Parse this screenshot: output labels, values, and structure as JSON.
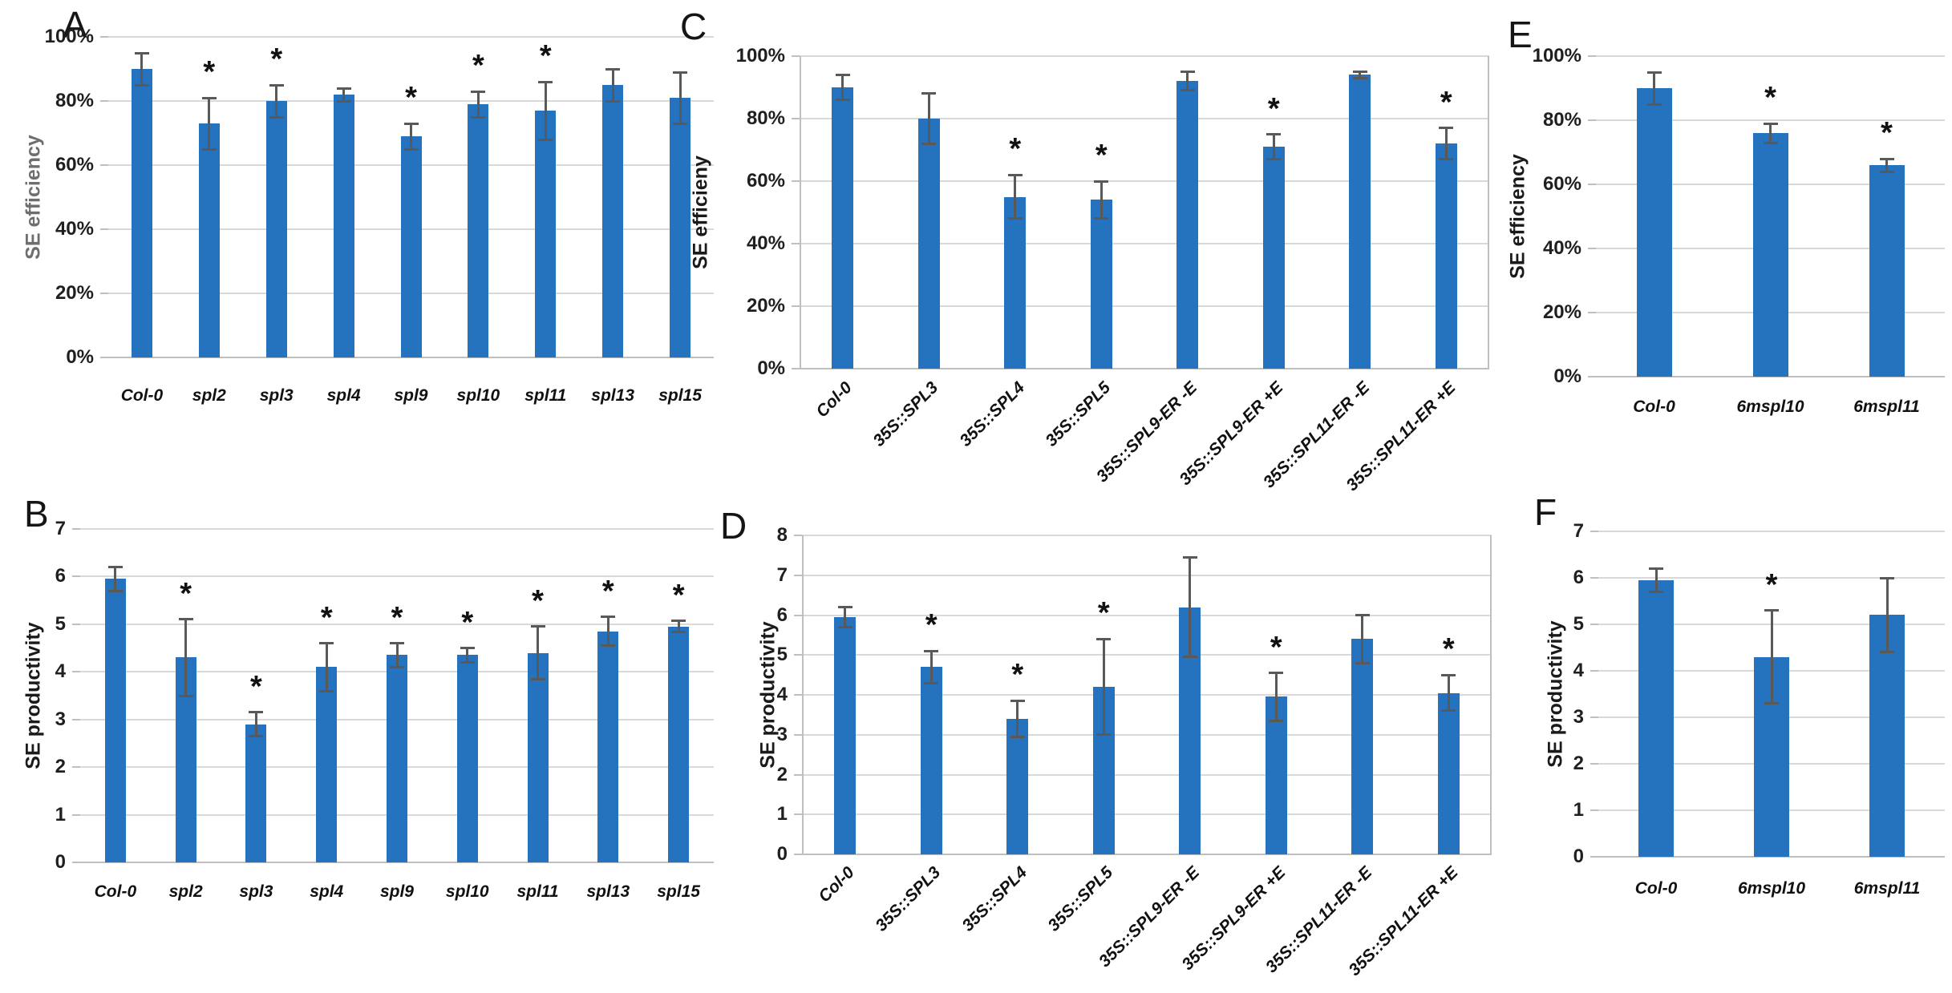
{
  "colors": {
    "bar": "#2573BE",
    "error_bar": "#595959",
    "gridline": "#D9D9D9",
    "axis": "#BFBFBF",
    "tick_text": "#1F1F1F",
    "y_title_default": "#1A1A1A",
    "y_title_panel_a": "#6E6E6E",
    "significance_marker": "#111111"
  },
  "significance_symbol": "*",
  "chart_data": [
    {
      "id": "A",
      "label": "A",
      "type": "bar",
      "ylabel": "SE efficiency",
      "ylim": [
        0,
        100
      ],
      "ytick_step": 20,
      "ytick_suffix": "%",
      "grid": true,
      "legend": false,
      "categories": [
        "Col-0",
        "spl2",
        "spl3",
        "spl4",
        "spl9",
        "spl10",
        "spl11",
        "spl13",
        "spl15"
      ],
      "values": [
        90,
        73,
        80,
        82,
        69,
        79,
        77,
        85,
        81
      ],
      "errors": [
        5,
        8,
        5,
        2,
        4,
        4,
        9,
        5,
        8
      ],
      "significant": [
        false,
        true,
        true,
        false,
        true,
        true,
        true,
        false,
        false
      ]
    },
    {
      "id": "B",
      "label": "B",
      "type": "bar",
      "ylabel": "SE productivity",
      "ylim": [
        0,
        7
      ],
      "ytick_step": 1,
      "ytick_suffix": "",
      "grid": true,
      "legend": false,
      "categories": [
        "Col-0",
        "spl2",
        "spl3",
        "spl4",
        "spl9",
        "spl10",
        "spl11",
        "spl13",
        "spl15"
      ],
      "values": [
        5.95,
        4.3,
        2.9,
        4.1,
        4.35,
        4.35,
        4.4,
        4.85,
        4.95
      ],
      "errors": [
        0.25,
        0.8,
        0.25,
        0.5,
        0.25,
        0.15,
        0.55,
        0.3,
        0.12
      ],
      "significant": [
        false,
        true,
        true,
        true,
        true,
        true,
        true,
        true,
        true
      ]
    },
    {
      "id": "C",
      "label": "C",
      "type": "bar",
      "ylabel": "SE efficieny",
      "ylim": [
        0,
        100
      ],
      "ytick_step": 20,
      "ytick_suffix": "%",
      "grid": true,
      "legend": false,
      "categories": [
        "Col-0",
        "35S::SPL3",
        "35S::SPL4",
        "35S::SPL5",
        "35S::SPL9-ER -E",
        "35S::SPL9-ER +E",
        "35S::SPL11-ER -E",
        "35S::SPL11-ER +E"
      ],
      "values": [
        90,
        80,
        55,
        54,
        92,
        71,
        94,
        72
      ],
      "errors": [
        4,
        8,
        7,
        6,
        3,
        4,
        1,
        5
      ],
      "significant": [
        false,
        false,
        true,
        true,
        false,
        true,
        false,
        true
      ]
    },
    {
      "id": "D",
      "label": "D",
      "type": "bar",
      "ylabel": "SE productivity",
      "ylim": [
        0,
        8
      ],
      "ytick_step": 1,
      "ytick_suffix": "",
      "grid": true,
      "legend": false,
      "categories": [
        "Col-0",
        "35S::SPL3",
        "35S::SPL4",
        "35S::SPL5",
        "35S::SPL9-ER -E",
        "35S::SPL9-ER +E",
        "35S::SPL11-ER -E",
        "35S::SPL11-ER +E"
      ],
      "values": [
        5.95,
        4.7,
        3.4,
        4.2,
        6.2,
        3.95,
        5.4,
        4.05
      ],
      "errors": [
        0.25,
        0.4,
        0.45,
        1.2,
        1.25,
        0.6,
        0.6,
        0.45
      ],
      "significant": [
        false,
        true,
        true,
        true,
        false,
        true,
        false,
        true
      ]
    },
    {
      "id": "E",
      "label": "E",
      "type": "bar",
      "ylabel": "SE efficiency",
      "ylim": [
        0,
        100
      ],
      "ytick_step": 20,
      "ytick_suffix": "%",
      "grid": true,
      "legend": false,
      "categories": [
        "Col-0",
        "6mspl10",
        "6mspl11"
      ],
      "values": [
        90,
        76,
        66
      ],
      "errors": [
        5,
        3,
        2
      ],
      "significant": [
        false,
        true,
        true
      ]
    },
    {
      "id": "F",
      "label": "F",
      "type": "bar",
      "ylabel": "SE productivity",
      "ylim": [
        0,
        7
      ],
      "ytick_step": 1,
      "ytick_suffix": "",
      "grid": true,
      "legend": false,
      "categories": [
        "Col-0",
        "6mspl10",
        "6mspl11"
      ],
      "values": [
        5.95,
        4.3,
        5.2
      ],
      "errors": [
        0.25,
        1.0,
        0.8
      ],
      "significant": [
        false,
        true,
        false
      ]
    }
  ]
}
